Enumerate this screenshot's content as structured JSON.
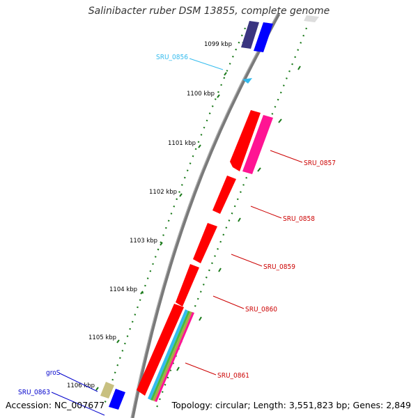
{
  "title": "Salinibacter ruber DSM 13855, complete genome",
  "accession": "Accession: NC_007677",
  "stats": "Topology: circular; Length: 3,551,823 bp; Genes: 2,849",
  "kbp_ticks": [
    "1099 kbp",
    "1100 kbp",
    "1101 kbp",
    "1102 kbp",
    "1103 kbp",
    "1104 kbp",
    "1105 kbp",
    "1106 kbp"
  ],
  "gene_labels": {
    "sru0856": "SRU_0856",
    "sru0857": "SRU_0857",
    "sru0858": "SRU_0858",
    "sru0859": "SRU_0859",
    "sru0860": "SRU_0860",
    "sru0861": "SRU_0861",
    "gros": "groS",
    "sru0863": "SRU_0863"
  },
  "colors": {
    "backbone": "#7a7a7a",
    "gene_forward": "#ff0000",
    "gene_magenta": "#ff1493",
    "gene_blue": "#0000ff",
    "gene_navy": "#3a3580",
    "gene_olive": "#c8c080",
    "gene_cyan": "#33bbee",
    "tick_green": "#1a7a1a",
    "label_red": "#cc0000",
    "label_blue": "#0000cc",
    "label_cyan": "#33bbee"
  }
}
